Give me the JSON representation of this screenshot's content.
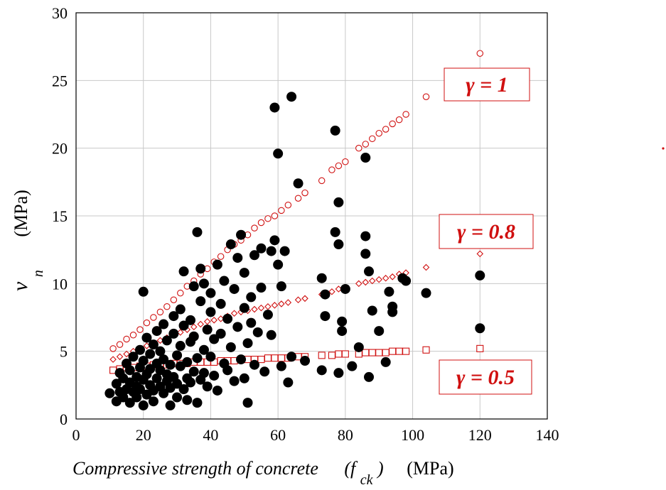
{
  "chart_data": {
    "type": "scatter",
    "xlabel": {
      "main": "Compressive strength of concrete",
      "symbol": "(f",
      "subscript": "ck",
      "close": ")",
      "unit": "(MPa)"
    },
    "ylabel": {
      "symbol": "v",
      "subscript": "n",
      "unit": "(MPa)"
    },
    "xlim": [
      0,
      140
    ],
    "ylim": [
      0,
      30
    ],
    "xticks": [
      "0",
      "20",
      "40",
      "60",
      "80",
      "100",
      "120",
      "140"
    ],
    "yticks": [
      "0",
      "5",
      "10",
      "15",
      "20",
      "25",
      "30"
    ],
    "grid": true,
    "colors": {
      "experimental": "#000000",
      "model": "#d01010"
    },
    "annotations": [
      {
        "label": "γ = 1",
        "anchor_x": 120,
        "anchor_y": 27
      },
      {
        "label": "γ = 0.8",
        "anchor_x": 120,
        "anchor_y": 12.2
      },
      {
        "label": "γ = 0.5",
        "anchor_x": 120,
        "anchor_y": 5.2
      }
    ],
    "series": [
      {
        "marker": "filled-circle",
        "points": [
          [
            10,
            1.9
          ],
          [
            12,
            1.3
          ],
          [
            12,
            2.6
          ],
          [
            13,
            3.4
          ],
          [
            13,
            2.0
          ],
          [
            14,
            3.0
          ],
          [
            14,
            1.6
          ],
          [
            15,
            2.2
          ],
          [
            15,
            4.1
          ],
          [
            16,
            2.7
          ],
          [
            16,
            3.6
          ],
          [
            16,
            1.2
          ],
          [
            17,
            2.0
          ],
          [
            17,
            4.6
          ],
          [
            18,
            3.1
          ],
          [
            18,
            2.4
          ],
          [
            18,
            1.6
          ],
          [
            19,
            3.8
          ],
          [
            19,
            5.1
          ],
          [
            19,
            2.2
          ],
          [
            20,
            9.4
          ],
          [
            20,
            1.0
          ],
          [
            20,
            2.9
          ],
          [
            20,
            4.3
          ],
          [
            21,
            3.3
          ],
          [
            21,
            6.0
          ],
          [
            21,
            1.8
          ],
          [
            22,
            2.5
          ],
          [
            22,
            4.8
          ],
          [
            22,
            3.7
          ],
          [
            23,
            5.5
          ],
          [
            23,
            2.1
          ],
          [
            23,
            1.3
          ],
          [
            24,
            3.0
          ],
          [
            24,
            4.1
          ],
          [
            24,
            6.5
          ],
          [
            25,
            2.4
          ],
          [
            25,
            3.6
          ],
          [
            25,
            5.0
          ],
          [
            26,
            1.9
          ],
          [
            26,
            7.0
          ],
          [
            26,
            4.4
          ],
          [
            27,
            2.8
          ],
          [
            27,
            3.3
          ],
          [
            27,
            5.8
          ],
          [
            28,
            1.0
          ],
          [
            28,
            4.0
          ],
          [
            28,
            2.3
          ],
          [
            29,
            6.3
          ],
          [
            29,
            3.1
          ],
          [
            29,
            7.6
          ],
          [
            30,
            2.6
          ],
          [
            30,
            4.7
          ],
          [
            30,
            1.6
          ],
          [
            31,
            3.9
          ],
          [
            31,
            5.4
          ],
          [
            31,
            8.1
          ],
          [
            32,
            2.2
          ],
          [
            32,
            10.9
          ],
          [
            32,
            6.9
          ],
          [
            33,
            4.2
          ],
          [
            33,
            3.0
          ],
          [
            33,
            1.4
          ],
          [
            34,
            5.7
          ],
          [
            34,
            7.3
          ],
          [
            34,
            2.7
          ],
          [
            35,
            9.8
          ],
          [
            35,
            3.5
          ],
          [
            35,
            6.1
          ],
          [
            36,
            13.8
          ],
          [
            36,
            1.2
          ],
          [
            36,
            4.5
          ],
          [
            37,
            11.1
          ],
          [
            37,
            2.9
          ],
          [
            37,
            8.7
          ],
          [
            38,
            5.1
          ],
          [
            38,
            3.4
          ],
          [
            38,
            10.0
          ],
          [
            39,
            6.6
          ],
          [
            39,
            2.4
          ],
          [
            40,
            7.9
          ],
          [
            40,
            4.6
          ],
          [
            40,
            9.3
          ],
          [
            41,
            3.2
          ],
          [
            41,
            5.9
          ],
          [
            42,
            11.4
          ],
          [
            42,
            2.1
          ],
          [
            43,
            6.3
          ],
          [
            43,
            8.5
          ],
          [
            44,
            4.1
          ],
          [
            44,
            10.2
          ],
          [
            45,
            3.6
          ],
          [
            45,
            7.4
          ],
          [
            46,
            12.9
          ],
          [
            46,
            5.3
          ],
          [
            47,
            2.8
          ],
          [
            47,
            9.6
          ],
          [
            48,
            6.8
          ],
          [
            48,
            11.9
          ],
          [
            49,
            4.4
          ],
          [
            49,
            13.6
          ],
          [
            50,
            3.0
          ],
          [
            50,
            8.2
          ],
          [
            50,
            10.8
          ],
          [
            51,
            5.6
          ],
          [
            51,
            1.2
          ],
          [
            52,
            9.0
          ],
          [
            52,
            7.1
          ],
          [
            53,
            12.1
          ],
          [
            53,
            4.0
          ],
          [
            54,
            6.4
          ],
          [
            55,
            9.7
          ],
          [
            55,
            12.6
          ],
          [
            56,
            3.5
          ],
          [
            57,
            7.7
          ],
          [
            58,
            12.4
          ],
          [
            58,
            6.2
          ],
          [
            59,
            23.0
          ],
          [
            59,
            13.2
          ],
          [
            60,
            19.6
          ],
          [
            60,
            11.4
          ],
          [
            61,
            9.8
          ],
          [
            61,
            3.9
          ],
          [
            62,
            12.4
          ],
          [
            63,
            2.7
          ],
          [
            64,
            23.8
          ],
          [
            64,
            4.6
          ],
          [
            66,
            17.4
          ],
          [
            68,
            4.3
          ],
          [
            73,
            10.4
          ],
          [
            73,
            3.6
          ],
          [
            74,
            7.6
          ],
          [
            74,
            9.2
          ],
          [
            77,
            21.3
          ],
          [
            77,
            13.8
          ],
          [
            78,
            16.0
          ],
          [
            78,
            12.9
          ],
          [
            78,
            3.4
          ],
          [
            79,
            7.2
          ],
          [
            79,
            6.5
          ],
          [
            80,
            9.6
          ],
          [
            82,
            3.9
          ],
          [
            84,
            5.3
          ],
          [
            86,
            19.3
          ],
          [
            86,
            13.5
          ],
          [
            86,
            12.2
          ],
          [
            87,
            10.9
          ],
          [
            87,
            3.1
          ],
          [
            88,
            8.0
          ],
          [
            90,
            6.5
          ],
          [
            92,
            4.2
          ],
          [
            93,
            9.4
          ],
          [
            94,
            7.9
          ],
          [
            94,
            8.3
          ],
          [
            97,
            10.4
          ],
          [
            98,
            10.2
          ],
          [
            104,
            9.3
          ],
          [
            120,
            10.6
          ],
          [
            120,
            6.7
          ]
        ]
      },
      {
        "marker": "open-circle",
        "gamma": 1,
        "points": [
          [
            11,
            5.2
          ],
          [
            13,
            5.5
          ],
          [
            15,
            5.9
          ],
          [
            17,
            6.2
          ],
          [
            19,
            6.6
          ],
          [
            21,
            7.1
          ],
          [
            23,
            7.5
          ],
          [
            25,
            7.9
          ],
          [
            27,
            8.3
          ],
          [
            29,
            8.8
          ],
          [
            31,
            9.3
          ],
          [
            33,
            9.8
          ],
          [
            35,
            10.2
          ],
          [
            37,
            10.7
          ],
          [
            39,
            11.1
          ],
          [
            41,
            11.6
          ],
          [
            43,
            12.0
          ],
          [
            45,
            12.5
          ],
          [
            47,
            12.9
          ],
          [
            49,
            13.2
          ],
          [
            51,
            13.6
          ],
          [
            53,
            14.1
          ],
          [
            55,
            14.5
          ],
          [
            57,
            14.8
          ],
          [
            59,
            15.0
          ],
          [
            61,
            15.4
          ],
          [
            63,
            15.8
          ],
          [
            66,
            16.3
          ],
          [
            68,
            16.7
          ],
          [
            73,
            17.6
          ],
          [
            76,
            18.4
          ],
          [
            78,
            18.7
          ],
          [
            80,
            19.0
          ],
          [
            84,
            20.0
          ],
          [
            86,
            20.3
          ],
          [
            88,
            20.7
          ],
          [
            90,
            21.1
          ],
          [
            92,
            21.4
          ],
          [
            94,
            21.8
          ],
          [
            96,
            22.1
          ],
          [
            98,
            22.5
          ],
          [
            104,
            23.8
          ],
          [
            120,
            27.0
          ]
        ]
      },
      {
        "marker": "open-diamond",
        "gamma": 0.8,
        "points": [
          [
            11,
            4.4
          ],
          [
            13,
            4.6
          ],
          [
            15,
            4.8
          ],
          [
            17,
            5.0
          ],
          [
            19,
            5.2
          ],
          [
            21,
            5.4
          ],
          [
            23,
            5.6
          ],
          [
            25,
            5.8
          ],
          [
            27,
            6.0
          ],
          [
            29,
            6.2
          ],
          [
            31,
            6.4
          ],
          [
            33,
            6.6
          ],
          [
            35,
            6.8
          ],
          [
            37,
            7.0
          ],
          [
            39,
            7.2
          ],
          [
            41,
            7.3
          ],
          [
            43,
            7.4
          ],
          [
            45,
            7.6
          ],
          [
            47,
            7.8
          ],
          [
            49,
            7.9
          ],
          [
            51,
            8.0
          ],
          [
            53,
            8.1
          ],
          [
            55,
            8.2
          ],
          [
            57,
            8.3
          ],
          [
            59,
            8.4
          ],
          [
            61,
            8.5
          ],
          [
            63,
            8.6
          ],
          [
            66,
            8.8
          ],
          [
            68,
            8.9
          ],
          [
            73,
            9.2
          ],
          [
            76,
            9.4
          ],
          [
            78,
            9.6
          ],
          [
            80,
            9.7
          ],
          [
            84,
            10.0
          ],
          [
            86,
            10.1
          ],
          [
            88,
            10.2
          ],
          [
            90,
            10.3
          ],
          [
            92,
            10.4
          ],
          [
            94,
            10.5
          ],
          [
            96,
            10.7
          ],
          [
            98,
            10.8
          ],
          [
            104,
            11.2
          ],
          [
            120,
            12.2
          ]
        ]
      },
      {
        "marker": "open-square",
        "gamma": 0.5,
        "points": [
          [
            11,
            3.6
          ],
          [
            13,
            3.7
          ],
          [
            15,
            3.8
          ],
          [
            17,
            3.8
          ],
          [
            19,
            3.9
          ],
          [
            21,
            3.9
          ],
          [
            23,
            4.0
          ],
          [
            25,
            4.0
          ],
          [
            27,
            4.0
          ],
          [
            29,
            4.1
          ],
          [
            31,
            4.1
          ],
          [
            33,
            4.1
          ],
          [
            35,
            4.2
          ],
          [
            37,
            4.2
          ],
          [
            39,
            4.2
          ],
          [
            41,
            4.2
          ],
          [
            43,
            4.3
          ],
          [
            45,
            4.3
          ],
          [
            47,
            4.3
          ],
          [
            49,
            4.4
          ],
          [
            51,
            4.4
          ],
          [
            53,
            4.4
          ],
          [
            55,
            4.4
          ],
          [
            57,
            4.5
          ],
          [
            59,
            4.5
          ],
          [
            61,
            4.5
          ],
          [
            63,
            4.5
          ],
          [
            66,
            4.6
          ],
          [
            68,
            4.6
          ],
          [
            73,
            4.7
          ],
          [
            76,
            4.7
          ],
          [
            78,
            4.8
          ],
          [
            80,
            4.8
          ],
          [
            84,
            4.8
          ],
          [
            86,
            4.9
          ],
          [
            88,
            4.9
          ],
          [
            90,
            4.9
          ],
          [
            92,
            4.9
          ],
          [
            94,
            5.0
          ],
          [
            96,
            5.0
          ],
          [
            98,
            5.0
          ],
          [
            104,
            5.1
          ],
          [
            120,
            5.2
          ]
        ]
      }
    ]
  }
}
